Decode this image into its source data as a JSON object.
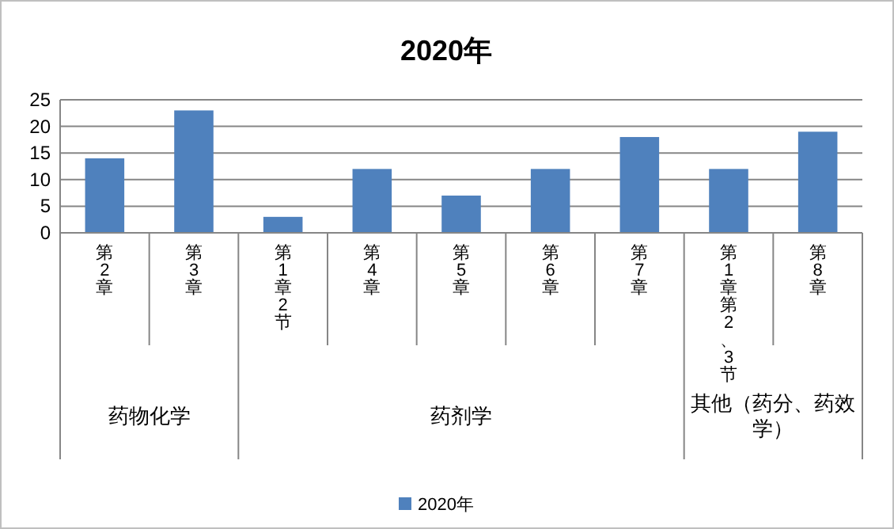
{
  "chart_data": {
    "type": "bar",
    "title": "2020年",
    "categories": [
      "第2章",
      "第3章",
      "第1章2节",
      "第4章",
      "第5章",
      "第6章",
      "第7章",
      "第1章第2、3节",
      "第8章"
    ],
    "series": [
      {
        "name": "2020年",
        "color": "#4f81bd",
        "values": [
          14,
          23,
          3,
          12,
          7,
          12,
          18,
          12,
          19
        ]
      }
    ],
    "ylim": [
      0,
      25
    ],
    "yticks": [
      0,
      5,
      10,
      15,
      20,
      25
    ],
    "grid": "y",
    "legend": "bottom",
    "annotations": [
      "药物化学",
      "药剂学",
      "其他（药分、药效学）"
    ]
  }
}
